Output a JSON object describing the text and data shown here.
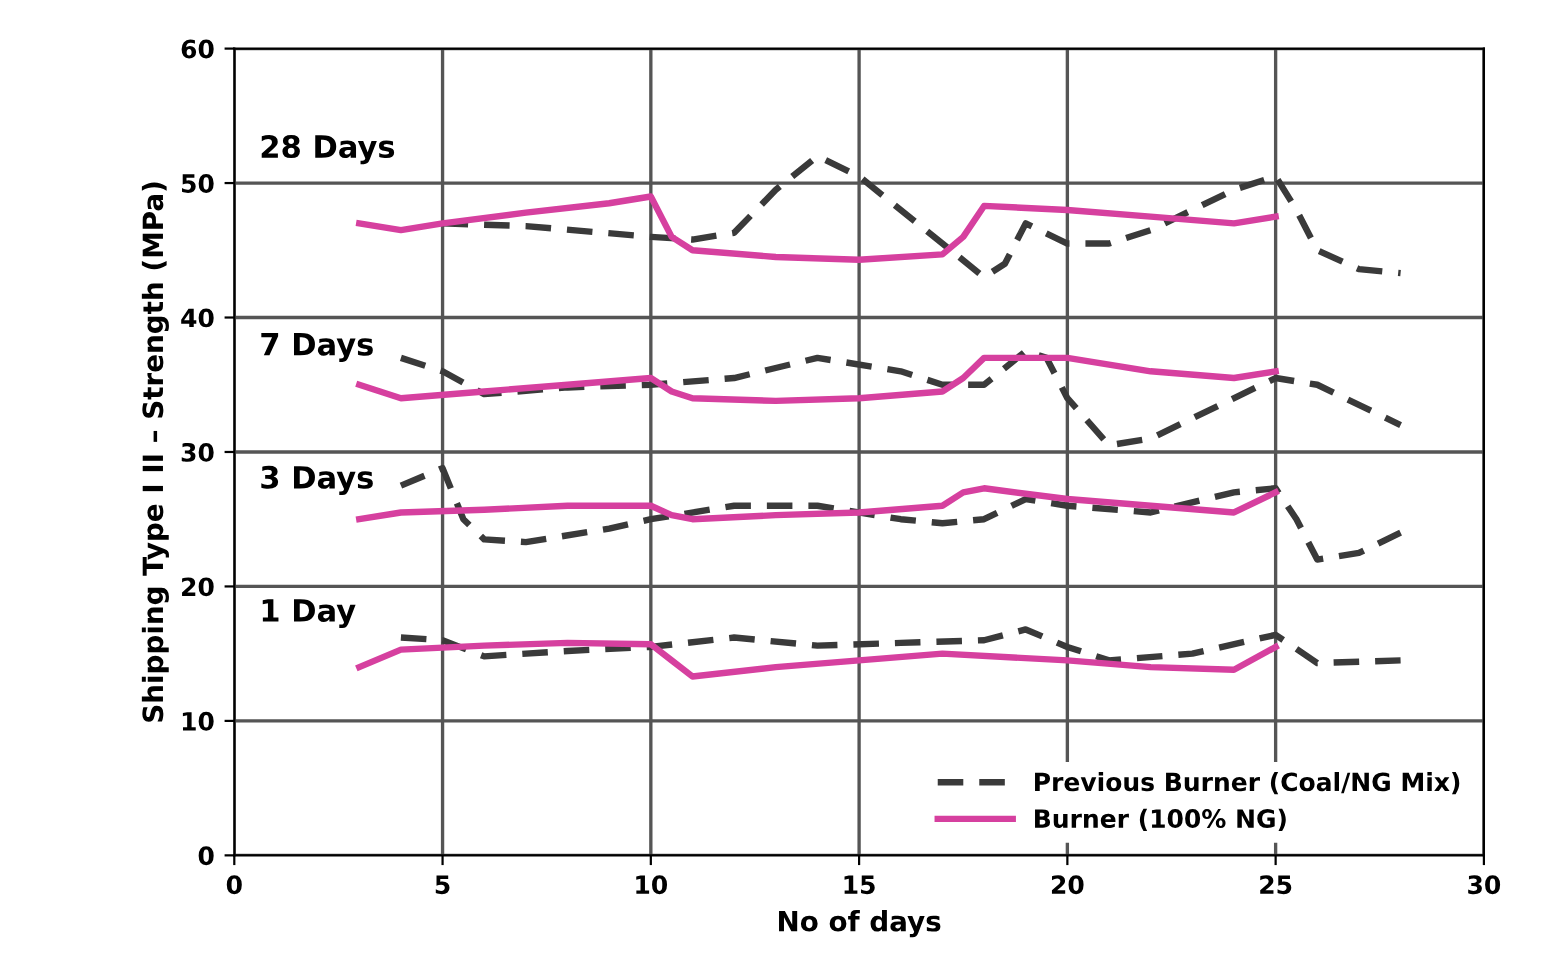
{
  "chart_data": {
    "type": "line",
    "xlabel": "No of days",
    "ylabel": "Shipping Type I II – Strength (MPa)",
    "xlim": [
      0,
      30
    ],
    "xticks": [
      0,
      5,
      10,
      15,
      20,
      25,
      30
    ],
    "ylim": [
      0,
      60
    ],
    "yticks": [
      0,
      10,
      20,
      30,
      40,
      50,
      60
    ],
    "grid": true,
    "legend": "bottom right",
    "marker": "none",
    "annotations": [
      "28 Days",
      "7 Days",
      "3 Days",
      "1 Day"
    ],
    "series": [
      {
        "name": "Previous Burner (Coal/NG Mix)",
        "color": "#3a3a3a",
        "line_style": "dashed",
        "x": [
          5,
          7,
          10,
          11,
          12,
          13,
          14,
          15,
          16,
          17,
          18,
          18.5,
          19,
          20,
          21,
          22,
          24,
          25,
          25.5,
          26,
          27,
          28
        ],
        "values": [
          47,
          46.8,
          46,
          45.8,
          46.3,
          49.5,
          52,
          50.5,
          48,
          45.5,
          43,
          44,
          47,
          45.5,
          45.5,
          46.5,
          49.5,
          50.5,
          48,
          45,
          43.6,
          43.3
        ]
      },
      {
        "name": "Burner (100% NG)",
        "color": "#d6409f",
        "line_style": "solid",
        "x": [
          3,
          4,
          5,
          7,
          9,
          10,
          10.5,
          11,
          13,
          15,
          17,
          17.5,
          18,
          20,
          22,
          24,
          25
        ],
        "values": [
          47,
          46.5,
          47,
          47.8,
          48.5,
          49,
          46,
          45,
          44.5,
          44.3,
          44.7,
          46,
          48.3,
          48,
          47.5,
          47,
          47.5
        ]
      },
      {
        "color": "#3a3a3a",
        "line_style": "dashed",
        "x": [
          4,
          5,
          6,
          8,
          10,
          12,
          14,
          16,
          17,
          18,
          19,
          19.5,
          20,
          21,
          22,
          25,
          26,
          28
        ],
        "values": [
          37,
          36,
          34.3,
          34.8,
          35,
          35.5,
          37,
          36,
          35,
          35,
          37.5,
          37,
          34,
          30.5,
          31,
          35.5,
          35,
          32
        ]
      },
      {
        "color": "#d6409f",
        "line_style": "solid",
        "x": [
          3,
          4,
          6,
          8,
          10,
          10.5,
          11,
          13,
          15,
          17,
          17.5,
          18,
          20,
          22,
          24,
          25
        ],
        "values": [
          35,
          34,
          34.5,
          35,
          35.5,
          34.5,
          34,
          33.8,
          34,
          34.5,
          35.5,
          37,
          37,
          36,
          35.5,
          36
        ]
      },
      {
        "color": "#3a3a3a",
        "line_style": "dashed",
        "x": [
          4,
          5,
          5.5,
          6,
          7,
          9,
          10,
          12,
          14,
          16,
          17,
          18,
          19,
          20,
          22,
          24,
          25,
          25.5,
          26,
          27,
          28
        ],
        "values": [
          27.5,
          28.8,
          25,
          23.5,
          23.3,
          24.3,
          25,
          26,
          26,
          25,
          24.7,
          25,
          26.5,
          26,
          25.5,
          27,
          27.3,
          25,
          22,
          22.5,
          24
        ]
      },
      {
        "color": "#d6409f",
        "line_style": "solid",
        "x": [
          3,
          4,
          6,
          8,
          10,
          10.5,
          11,
          13,
          15,
          17,
          17.5,
          18,
          20,
          22,
          24,
          25
        ],
        "values": [
          25,
          25.5,
          25.7,
          26,
          26,
          25.3,
          25,
          25.3,
          25.5,
          26,
          27,
          27.3,
          26.5,
          26,
          25.5,
          27
        ]
      },
      {
        "color": "#3a3a3a",
        "line_style": "dashed",
        "x": [
          4,
          5,
          6,
          8,
          10,
          12,
          14,
          16,
          18,
          19,
          20,
          21,
          23,
          25,
          26,
          28
        ],
        "values": [
          16.2,
          16,
          14.8,
          15.2,
          15.5,
          16.2,
          15.6,
          15.8,
          16,
          16.8,
          15.5,
          14.5,
          15,
          16.4,
          14.3,
          14.5
        ]
      },
      {
        "color": "#d6409f",
        "line_style": "solid",
        "x": [
          3,
          4,
          6,
          8,
          10,
          10.5,
          11,
          13,
          15,
          17,
          20,
          22,
          24,
          25
        ],
        "values": [
          14,
          15.3,
          15.6,
          15.8,
          15.7,
          14.5,
          13.3,
          14,
          14.5,
          15,
          14.5,
          14,
          13.8,
          15.5
        ]
      }
    ]
  }
}
